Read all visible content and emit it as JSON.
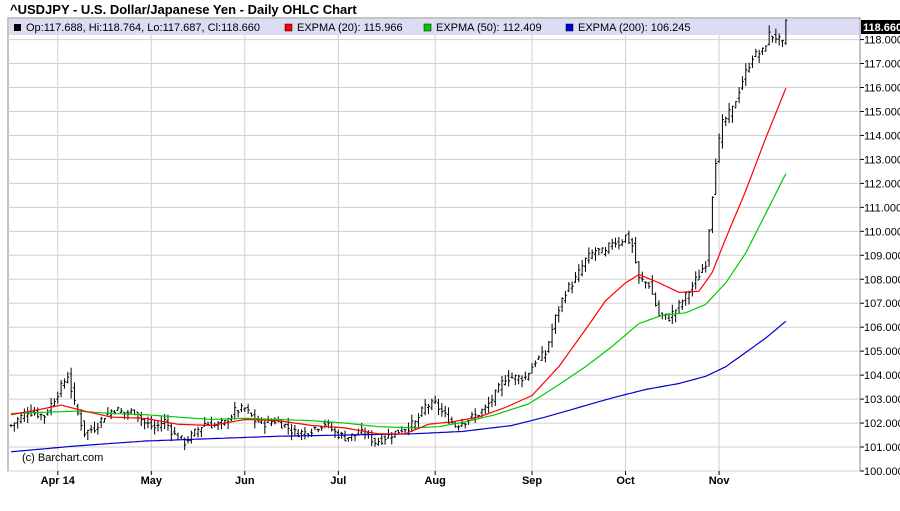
{
  "title": "^USDJPY - U.S. Dollar/Japanese Yen - Daily OHLC Chart",
  "legend": {
    "ohlc": "Op:117.688, Hi:118.764, Lo:117.687, Cl:118.660",
    "ema20": "EXPMA (20): 115.966",
    "ema50": "EXPMA (50): 112.409",
    "ema200": "EXPMA (200): 106.245"
  },
  "copyright": "(c) Barchart.com",
  "last_price": "118.660",
  "colors": {
    "price": "#000000",
    "ema20": "#ff0000",
    "ema50": "#00cc00",
    "ema200": "#0000cc",
    "legend_bg": "#dcdcf5",
    "grid": "#cccccc",
    "price_tag_bg": "#000000"
  },
  "chart_data": {
    "type": "line",
    "ylim": [
      100,
      118.9
    ],
    "yticks": [
      "100.000",
      "101.000",
      "102.000",
      "103.000",
      "104.000",
      "105.000",
      "106.000",
      "107.000",
      "108.000",
      "109.000",
      "110.000",
      "111.000",
      "112.000",
      "113.000",
      "114.000",
      "115.000",
      "116.000",
      "117.000",
      "118.000"
    ],
    "xlabels": [
      "Apr 14",
      "May",
      "Jun",
      "Jul",
      "Aug",
      "Sep",
      "Oct",
      "Nov"
    ],
    "xlabel_index": [
      14,
      42,
      70,
      98,
      127,
      156,
      184,
      212
    ],
    "num_bars": 233,
    "close_anchors": [
      [
        0,
        101.9
      ],
      [
        5,
        102.5
      ],
      [
        10,
        102.3
      ],
      [
        15,
        103.5
      ],
      [
        17,
        104.0
      ],
      [
        19,
        102.8
      ],
      [
        22,
        101.6
      ],
      [
        25,
        101.8
      ],
      [
        28,
        102.3
      ],
      [
        31,
        102.6
      ],
      [
        34,
        102.4
      ],
      [
        37,
        102.5
      ],
      [
        40,
        102.0
      ],
      [
        43,
        101.8
      ],
      [
        46,
        102.1
      ],
      [
        49,
        101.5
      ],
      [
        52,
        101.2
      ],
      [
        55,
        101.6
      ],
      [
        58,
        102.0
      ],
      [
        61,
        101.9
      ],
      [
        64,
        102.0
      ],
      [
        67,
        102.5
      ],
      [
        70,
        102.6
      ],
      [
        73,
        102.1
      ],
      [
        76,
        102.0
      ],
      [
        79,
        102.1
      ],
      [
        82,
        101.9
      ],
      [
        85,
        101.6
      ],
      [
        88,
        101.6
      ],
      [
        91,
        101.8
      ],
      [
        94,
        102.0
      ],
      [
        97,
        101.6
      ],
      [
        100,
        101.4
      ],
      [
        103,
        101.5
      ],
      [
        106,
        101.6
      ],
      [
        109,
        101.2
      ],
      [
        112,
        101.4
      ],
      [
        115,
        101.6
      ],
      [
        118,
        101.8
      ],
      [
        121,
        102.0
      ],
      [
        124,
        102.7
      ],
      [
        127,
        102.8
      ],
      [
        130,
        102.3
      ],
      [
        133,
        101.9
      ],
      [
        136,
        102.1
      ],
      [
        139,
        102.3
      ],
      [
        142,
        102.6
      ],
      [
        145,
        103.2
      ],
      [
        148,
        103.9
      ],
      [
        151,
        103.9
      ],
      [
        154,
        103.9
      ],
      [
        157,
        104.6
      ],
      [
        160,
        104.9
      ],
      [
        163,
        106.4
      ],
      [
        166,
        107.5
      ],
      [
        169,
        108.0
      ],
      [
        172,
        108.8
      ],
      [
        175,
        109.2
      ],
      [
        178,
        109.1
      ],
      [
        180,
        109.6
      ],
      [
        182,
        109.5
      ],
      [
        184,
        109.8
      ],
      [
        186,
        109.4
      ],
      [
        188,
        108.0
      ],
      [
        191,
        107.8
      ],
      [
        194,
        106.5
      ],
      [
        197,
        106.4
      ],
      [
        200,
        106.9
      ],
      [
        203,
        107.5
      ],
      [
        206,
        108.2
      ],
      [
        208,
        108.7
      ],
      [
        211,
        113.0
      ],
      [
        213,
        114.5
      ],
      [
        216,
        115.1
      ],
      [
        219,
        116.3
      ],
      [
        222,
        117.3
      ],
      [
        225,
        117.5
      ],
      [
        227,
        118.2
      ],
      [
        229,
        118.1
      ],
      [
        231,
        117.8
      ],
      [
        232,
        118.66
      ]
    ],
    "ema20_anchors": [
      [
        0,
        102.35
      ],
      [
        8,
        102.55
      ],
      [
        15,
        102.75
      ],
      [
        22,
        102.5
      ],
      [
        30,
        102.25
      ],
      [
        40,
        102.2
      ],
      [
        50,
        101.95
      ],
      [
        60,
        101.9
      ],
      [
        70,
        102.15
      ],
      [
        80,
        102.1
      ],
      [
        90,
        101.9
      ],
      [
        100,
        101.8
      ],
      [
        110,
        101.55
      ],
      [
        118,
        101.55
      ],
      [
        125,
        101.95
      ],
      [
        132,
        102.05
      ],
      [
        140,
        102.25
      ],
      [
        148,
        102.65
      ],
      [
        156,
        103.15
      ],
      [
        164,
        104.35
      ],
      [
        172,
        105.9
      ],
      [
        178,
        107.1
      ],
      [
        184,
        107.85
      ],
      [
        188,
        108.2
      ],
      [
        194,
        107.85
      ],
      [
        200,
        107.45
      ],
      [
        206,
        107.5
      ],
      [
        210,
        108.3
      ],
      [
        214,
        109.7
      ],
      [
        220,
        111.7
      ],
      [
        226,
        113.9
      ],
      [
        232,
        115.97
      ]
    ],
    "ema50_anchors": [
      [
        0,
        102.4
      ],
      [
        10,
        102.45
      ],
      [
        20,
        102.5
      ],
      [
        30,
        102.4
      ],
      [
        40,
        102.35
      ],
      [
        50,
        102.25
      ],
      [
        60,
        102.15
      ],
      [
        70,
        102.2
      ],
      [
        80,
        102.15
      ],
      [
        90,
        102.1
      ],
      [
        100,
        102.0
      ],
      [
        110,
        101.85
      ],
      [
        120,
        101.8
      ],
      [
        128,
        101.85
      ],
      [
        136,
        102.05
      ],
      [
        145,
        102.35
      ],
      [
        155,
        102.8
      ],
      [
        164,
        103.6
      ],
      [
        172,
        104.35
      ],
      [
        180,
        105.2
      ],
      [
        188,
        106.15
      ],
      [
        195,
        106.5
      ],
      [
        202,
        106.6
      ],
      [
        208,
        106.95
      ],
      [
        214,
        107.85
      ],
      [
        220,
        109.1
      ],
      [
        226,
        110.75
      ],
      [
        232,
        112.41
      ]
    ],
    "ema200_anchors": [
      [
        0,
        100.8
      ],
      [
        20,
        101.05
      ],
      [
        40,
        101.25
      ],
      [
        60,
        101.35
      ],
      [
        80,
        101.45
      ],
      [
        100,
        101.5
      ],
      [
        120,
        101.55
      ],
      [
        135,
        101.65
      ],
      [
        150,
        101.9
      ],
      [
        160,
        102.25
      ],
      [
        170,
        102.65
      ],
      [
        180,
        103.05
      ],
      [
        190,
        103.4
      ],
      [
        200,
        103.65
      ],
      [
        208,
        103.95
      ],
      [
        214,
        104.35
      ],
      [
        220,
        104.95
      ],
      [
        226,
        105.55
      ],
      [
        232,
        106.25
      ]
    ]
  }
}
